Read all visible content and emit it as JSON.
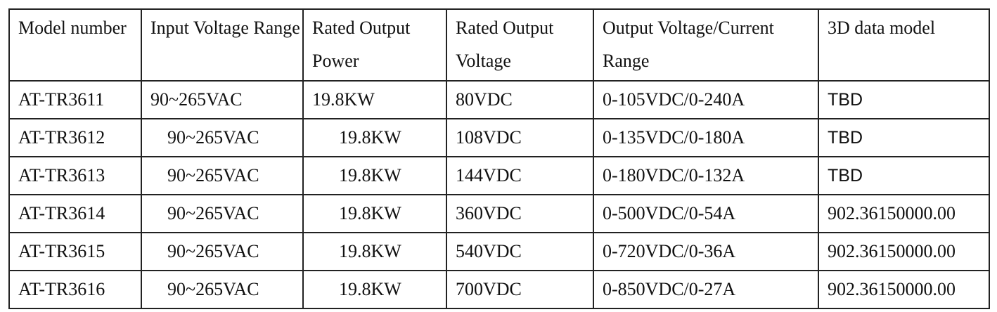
{
  "table": {
    "header": [
      "Model number",
      "Input Voltage Range",
      "Rated Output Power",
      "Rated Output Voltage",
      "Output Voltage/Current Range",
      "3D data model"
    ],
    "rows": [
      [
        "AT-TR3611",
        "90~265VAC",
        "19.8KW",
        "80VDC",
        "0-105VDC/0-240A",
        "TBD"
      ],
      [
        "AT-TR3612",
        "90~265VAC",
        "19.8KW",
        "108VDC",
        "0-135VDC/0-180A",
        "TBD"
      ],
      [
        "AT-TR3613",
        "90~265VAC",
        "19.8KW",
        "144VDC",
        "0-180VDC/0-132A",
        "TBD"
      ],
      [
        "AT-TR3614",
        "90~265VAC",
        "19.8KW",
        "360VDC",
        "0-500VDC/0-54A",
        "902.36150000.00"
      ],
      [
        "AT-TR3615",
        "90~265VAC",
        "19.8KW",
        "540VDC",
        "0-720VDC/0-36A",
        "902.36150000.00"
      ],
      [
        "AT-TR3616",
        "90~265VAC",
        "19.8KW",
        "700VDC",
        "0-850VDC/0-27A",
        "902.36150000.00"
      ]
    ]
  }
}
